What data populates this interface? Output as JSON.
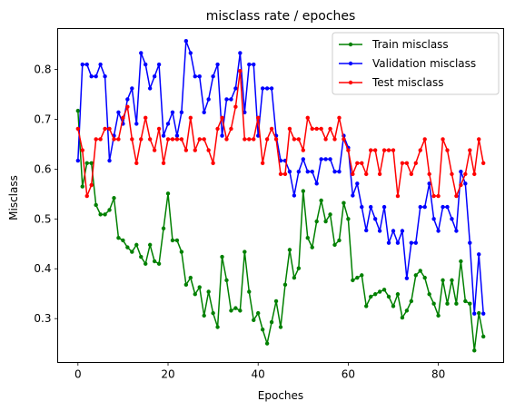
{
  "chart_data": {
    "type": "line",
    "title": "misclass rate / epoches",
    "xlabel": "Epoches",
    "ylabel": "Misclass",
    "xlim": [
      -4.5,
      94.5
    ],
    "ylim": [
      0.212,
      0.882
    ],
    "xticks": [
      0,
      20,
      40,
      60,
      80
    ],
    "yticks": [
      0.3,
      0.4,
      0.5,
      0.6,
      0.7,
      0.8
    ],
    "grid": false,
    "legend": "top-right",
    "series": [
      {
        "name": "Train misclass",
        "color": "#008000",
        "values": [
          0.717,
          0.565,
          0.612,
          0.612,
          0.528,
          0.509,
          0.509,
          0.518,
          0.542,
          0.462,
          0.457,
          0.443,
          0.434,
          0.448,
          0.424,
          0.41,
          0.448,
          0.415,
          0.41,
          0.481,
          0.551,
          0.457,
          0.457,
          0.434,
          0.368,
          0.382,
          0.349,
          0.363,
          0.306,
          0.354,
          0.311,
          0.283,
          0.424,
          0.377,
          0.316,
          0.321,
          0.316,
          0.434,
          0.354,
          0.297,
          0.311,
          0.278,
          0.25,
          0.293,
          0.335,
          0.283,
          0.368,
          0.438,
          0.382,
          0.401,
          0.556,
          0.462,
          0.443,
          0.495,
          0.537,
          0.495,
          0.509,
          0.448,
          0.457,
          0.532,
          0.5,
          0.377,
          0.382,
          0.387,
          0.325,
          0.344,
          0.349,
          0.354,
          0.358,
          0.344,
          0.325,
          0.349,
          0.302,
          0.316,
          0.335,
          0.387,
          0.396,
          0.382,
          0.349,
          0.33,
          0.306,
          0.377,
          0.33,
          0.377,
          0.33,
          0.415,
          0.335,
          0.33,
          0.236,
          0.311,
          0.264
        ]
      },
      {
        "name": "Validation misclass",
        "color": "#0000ff",
        "values": [
          0.617,
          0.81,
          0.81,
          0.786,
          0.786,
          0.81,
          0.786,
          0.617,
          0.667,
          0.714,
          0.691,
          0.74,
          0.762,
          0.691,
          0.833,
          0.81,
          0.762,
          0.786,
          0.81,
          0.667,
          0.691,
          0.714,
          0.667,
          0.714,
          0.857,
          0.833,
          0.786,
          0.786,
          0.714,
          0.74,
          0.786,
          0.81,
          0.667,
          0.74,
          0.74,
          0.762,
          0.833,
          0.714,
          0.81,
          0.81,
          0.667,
          0.762,
          0.762,
          0.762,
          0.667,
          0.617,
          0.617,
          0.595,
          0.547,
          0.595,
          0.62,
          0.595,
          0.595,
          0.571,
          0.62,
          0.62,
          0.62,
          0.595,
          0.595,
          0.667,
          0.643,
          0.547,
          0.571,
          0.524,
          0.477,
          0.524,
          0.5,
          0.476,
          0.524,
          0.452,
          0.476,
          0.452,
          0.476,
          0.381,
          0.452,
          0.452,
          0.524,
          0.524,
          0.571,
          0.5,
          0.476,
          0.524,
          0.524,
          0.5,
          0.476,
          0.595,
          0.571,
          0.452,
          0.31,
          0.429,
          0.31
        ]
      },
      {
        "name": "Test misclass",
        "color": "#ff0000",
        "values": [
          0.681,
          0.638,
          0.546,
          0.568,
          0.66,
          0.66,
          0.681,
          0.681,
          0.66,
          0.66,
          0.703,
          0.725,
          0.66,
          0.612,
          0.66,
          0.703,
          0.66,
          0.638,
          0.681,
          0.612,
          0.66,
          0.66,
          0.66,
          0.66,
          0.638,
          0.703,
          0.638,
          0.66,
          0.66,
          0.638,
          0.612,
          0.681,
          0.703,
          0.66,
          0.681,
          0.725,
          0.797,
          0.66,
          0.66,
          0.66,
          0.703,
          0.612,
          0.66,
          0.681,
          0.66,
          0.59,
          0.59,
          0.681,
          0.66,
          0.66,
          0.638,
          0.703,
          0.681,
          0.681,
          0.681,
          0.66,
          0.681,
          0.66,
          0.703,
          0.66,
          0.638,
          0.59,
          0.612,
          0.612,
          0.59,
          0.638,
          0.638,
          0.59,
          0.638,
          0.638,
          0.638,
          0.546,
          0.612,
          0.612,
          0.59,
          0.612,
          0.638,
          0.66,
          0.59,
          0.546,
          0.546,
          0.66,
          0.638,
          0.59,
          0.546,
          0.568,
          0.59,
          0.638,
          0.59,
          0.66,
          0.612
        ]
      }
    ]
  }
}
